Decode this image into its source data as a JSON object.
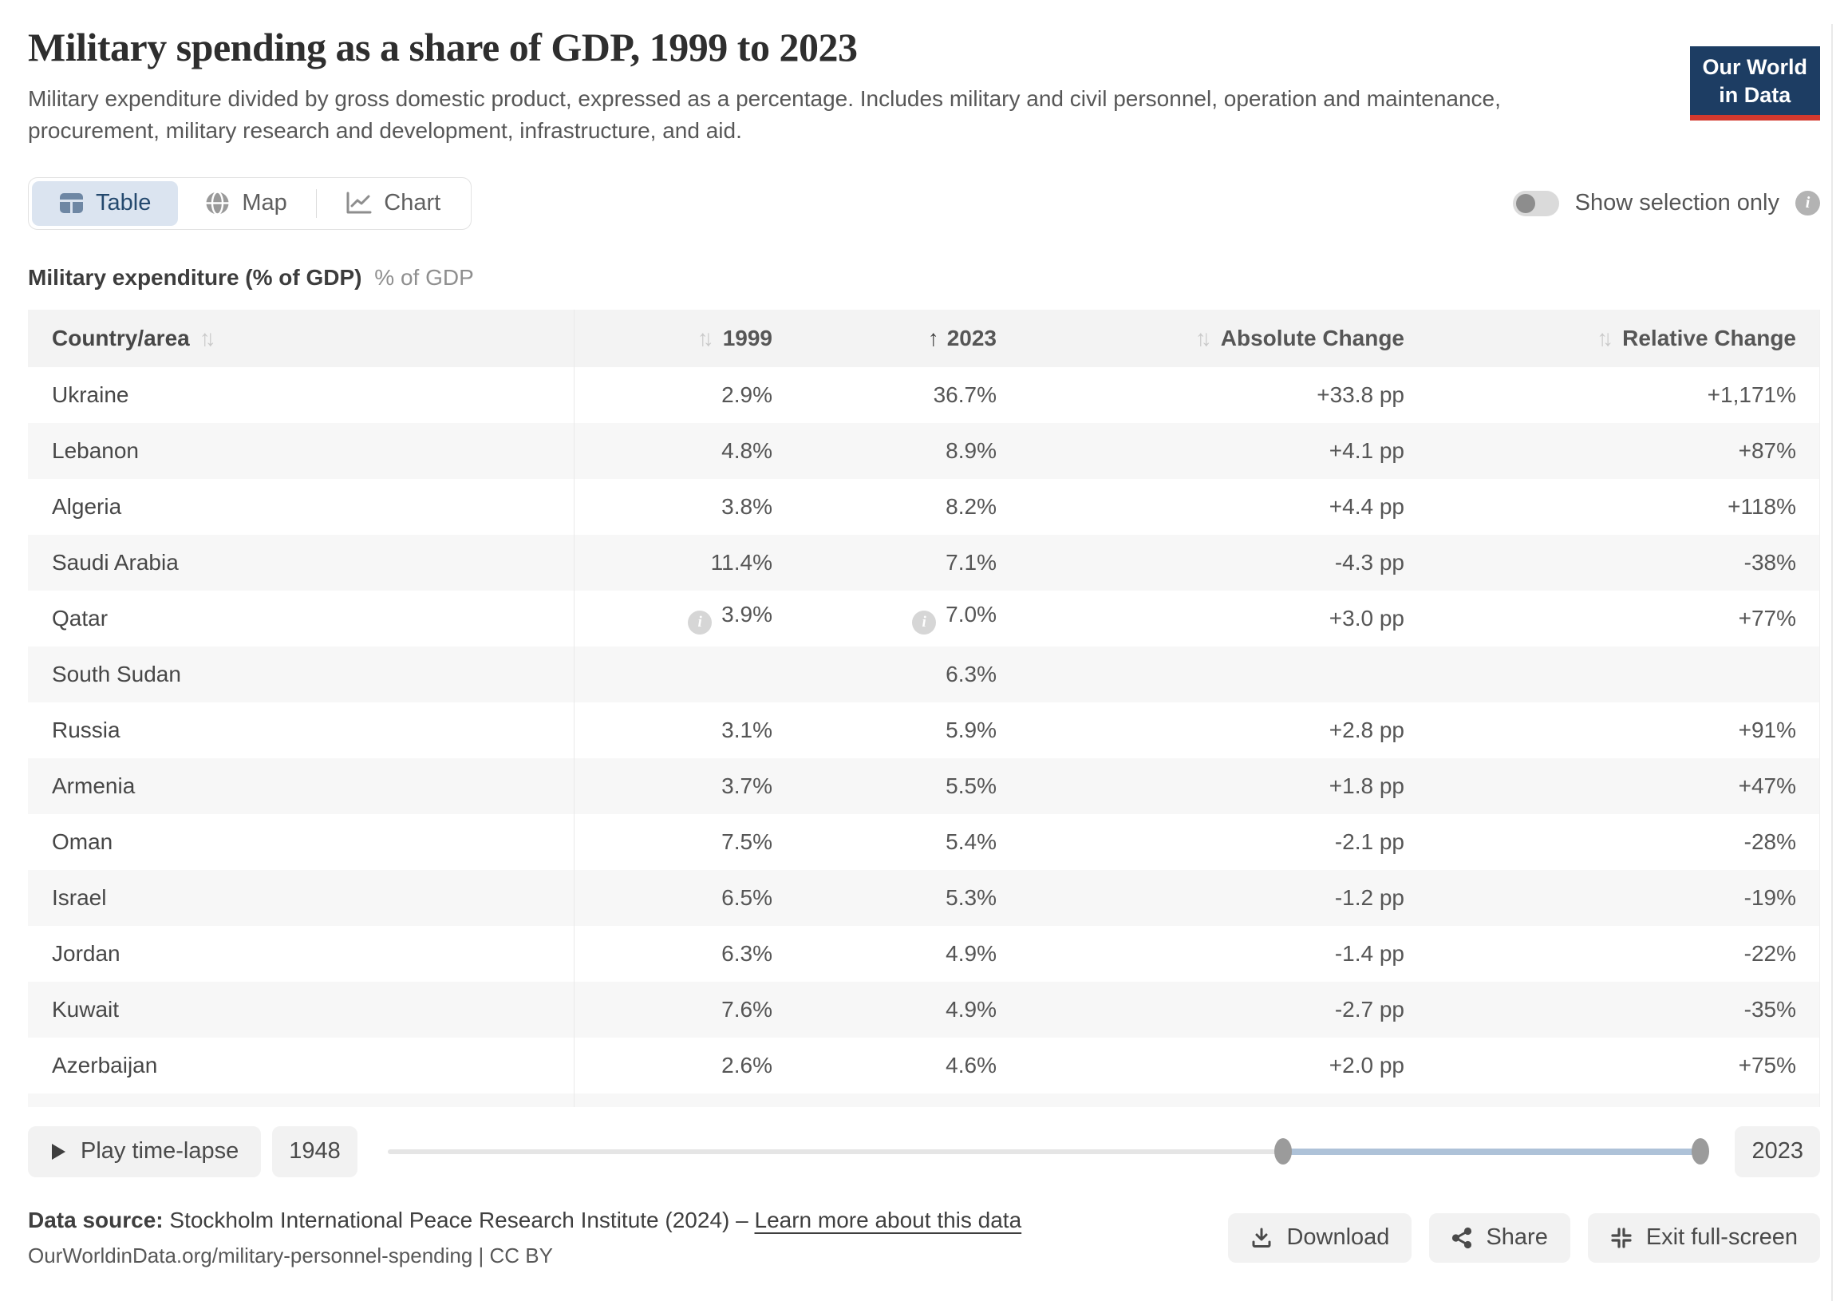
{
  "header": {
    "title": "Military spending as a share of GDP, 1999 to 2023",
    "subtitle": "Military expenditure divided by gross domestic product, expressed as a percentage. Includes military and civil personnel, operation and maintenance, procurement, military research and development, infrastructure, and aid.",
    "logo_line1": "Our World",
    "logo_line2": "in Data"
  },
  "tabs": [
    {
      "label": "Table",
      "icon": "table-icon",
      "active": true
    },
    {
      "label": "Map",
      "icon": "globe-icon",
      "active": false
    },
    {
      "label": "Chart",
      "icon": "chart-icon",
      "active": false
    }
  ],
  "selection_toggle": {
    "label": "Show selection only",
    "state": "off"
  },
  "table_heading": {
    "bold": "Military expenditure (% of GDP)",
    "unit": "% of GDP"
  },
  "table": {
    "columns": [
      {
        "label": "Country/area",
        "align": "left",
        "sort": "both",
        "arrows": "after"
      },
      {
        "label": "1999",
        "align": "right",
        "sort": "both",
        "arrows": "before"
      },
      {
        "label": "2023",
        "align": "right",
        "sort": "asc",
        "arrows": "before"
      },
      {
        "label": "Absolute Change",
        "align": "right",
        "sort": "both",
        "arrows": "before"
      },
      {
        "label": "Relative Change",
        "align": "right",
        "sort": "both",
        "arrows": "before"
      }
    ],
    "rows": [
      {
        "country": "Ukraine",
        "values": [
          "2.9%",
          "36.7%",
          "+33.8 pp",
          "+1,171%"
        ],
        "info": [
          false,
          false
        ]
      },
      {
        "country": "Lebanon",
        "values": [
          "4.8%",
          "8.9%",
          "+4.1 pp",
          "+87%"
        ],
        "info": [
          false,
          false
        ]
      },
      {
        "country": "Algeria",
        "values": [
          "3.8%",
          "8.2%",
          "+4.4 pp",
          "+118%"
        ],
        "info": [
          false,
          false
        ]
      },
      {
        "country": "Saudi Arabia",
        "values": [
          "11.4%",
          "7.1%",
          "-4.3 pp",
          "-38%"
        ],
        "info": [
          false,
          false
        ]
      },
      {
        "country": "Qatar",
        "values": [
          "3.9%",
          "7.0%",
          "+3.0 pp",
          "+77%"
        ],
        "info": [
          true,
          true
        ]
      },
      {
        "country": "South Sudan",
        "values": [
          "",
          "6.3%",
          "",
          ""
        ],
        "info": [
          false,
          false
        ]
      },
      {
        "country": "Russia",
        "values": [
          "3.1%",
          "5.9%",
          "+2.8 pp",
          "+91%"
        ],
        "info": [
          false,
          false
        ]
      },
      {
        "country": "Armenia",
        "values": [
          "3.7%",
          "5.5%",
          "+1.8 pp",
          "+47%"
        ],
        "info": [
          false,
          false
        ]
      },
      {
        "country": "Oman",
        "values": [
          "7.5%",
          "5.4%",
          "-2.1 pp",
          "-28%"
        ],
        "info": [
          false,
          false
        ]
      },
      {
        "country": "Israel",
        "values": [
          "6.5%",
          "5.3%",
          "-1.2 pp",
          "-19%"
        ],
        "info": [
          false,
          false
        ]
      },
      {
        "country": "Jordan",
        "values": [
          "6.3%",
          "4.9%",
          "-1.4 pp",
          "-22%"
        ],
        "info": [
          false,
          false
        ]
      },
      {
        "country": "Kuwait",
        "values": [
          "7.6%",
          "4.9%",
          "-2.7 pp",
          "-35%"
        ],
        "info": [
          false,
          false
        ]
      },
      {
        "country": "Azerbaijan",
        "values": [
          "2.6%",
          "4.6%",
          "+2.0 pp",
          "+75%"
        ],
        "info": [
          false,
          false
        ]
      }
    ]
  },
  "timeline": {
    "play_label": "Play time-lapse",
    "start_year": "1948",
    "end_year": "2023",
    "range_start_pct": 68,
    "range_end_pct": 100
  },
  "footer": {
    "source_label": "Data source:",
    "source_text": "Stockholm International Peace Research Institute (2024)",
    "dash": "–",
    "learn_more": "Learn more about this data",
    "citation_line": "OurWorldinData.org/military-personnel-spending | CC BY",
    "buttons": [
      "Download",
      "Share",
      "Exit full-screen"
    ]
  },
  "colors": {
    "logo_navy": "#1d3d63",
    "logo_red": "#d3392e",
    "active_tab_bg": "#dbe4f0",
    "active_tab_text": "#24496e",
    "alt_row_bg": "#f7f7f7",
    "header_row_bg": "#f3f3f3",
    "slider_range": "#aec2d8",
    "button_bg": "#f2f2f2"
  }
}
